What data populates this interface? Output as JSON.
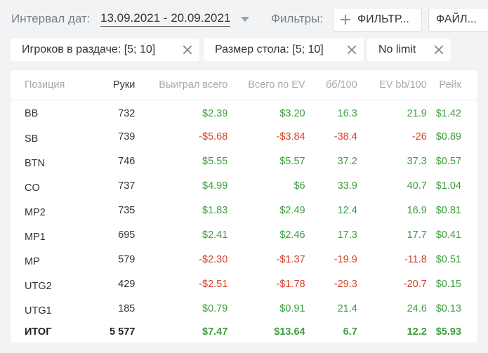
{
  "header": {
    "date_label": "Интервал дат:",
    "date_range": "13.09.2021 - 20.09.2021",
    "filters_label": "Фильтры:",
    "filter_button": "ФИЛЬТР...",
    "file_button": "ФАЙЛ..."
  },
  "chips": [
    {
      "label": "Игроков в раздаче: [5; 10]"
    },
    {
      "label": "Размер стола: [5; 10]"
    },
    {
      "label": "No limit"
    }
  ],
  "table": {
    "columns": [
      "Позиция",
      "Руки",
      "Выиграл всего",
      "Всего по EV",
      "бб/100",
      "EV bb/100",
      "Рейк"
    ],
    "rows": [
      {
        "pos": "BB",
        "hands": "732",
        "won": "$2.39",
        "ev": "$3.20",
        "bb100": "16.3",
        "evbb": "21.9",
        "rake": "$1.42"
      },
      {
        "pos": "SB",
        "hands": "739",
        "won": "-$5.68",
        "ev": "-$3.84",
        "bb100": "-38.4",
        "evbb": "-26",
        "rake": "$0.89"
      },
      {
        "pos": "BTN",
        "hands": "746",
        "won": "$5.55",
        "ev": "$5.57",
        "bb100": "37.2",
        "evbb": "37.3",
        "rake": "$0.57"
      },
      {
        "pos": "CO",
        "hands": "737",
        "won": "$4.99",
        "ev": "$6",
        "bb100": "33.9",
        "evbb": "40.7",
        "rake": "$1.04"
      },
      {
        "pos": "MP2",
        "hands": "735",
        "won": "$1.83",
        "ev": "$2.49",
        "bb100": "12.4",
        "evbb": "16.9",
        "rake": "$0.81"
      },
      {
        "pos": "MP1",
        "hands": "695",
        "won": "$2.41",
        "ev": "$2.46",
        "bb100": "17.3",
        "evbb": "17.7",
        "rake": "$0.41"
      },
      {
        "pos": "MP",
        "hands": "579",
        "won": "-$2.30",
        "ev": "-$1.37",
        "bb100": "-19.9",
        "evbb": "-11.8",
        "rake": "$0.51"
      },
      {
        "pos": "UTG2",
        "hands": "429",
        "won": "-$2.51",
        "ev": "-$1.78",
        "bb100": "-29.3",
        "evbb": "-20.7",
        "rake": "$0.15"
      },
      {
        "pos": "UTG1",
        "hands": "185",
        "won": "$0.79",
        "ev": "$0.91",
        "bb100": "21.4",
        "evbb": "24.6",
        "rake": "$0.13"
      }
    ],
    "total": {
      "pos": "ИТОГ",
      "hands": "5 577",
      "won": "$7.47",
      "ev": "$13.64",
      "bb100": "6.7",
      "evbb": "12.2",
      "rake": "$5.93"
    }
  },
  "colors": {
    "positive": "#3e9e3e",
    "negative": "#d5432b"
  }
}
